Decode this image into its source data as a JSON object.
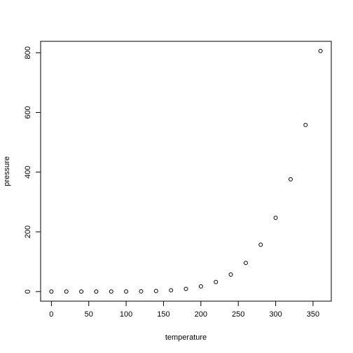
{
  "chart_data": {
    "type": "scatter",
    "x_label": "temperature",
    "y_label": "pressure",
    "x": [
      0,
      20,
      40,
      60,
      80,
      100,
      120,
      140,
      160,
      180,
      200,
      220,
      240,
      260,
      280,
      300,
      320,
      340,
      360
    ],
    "series": [
      {
        "values": [
          0.0002,
          0.0012,
          0.006,
          0.03,
          0.09,
          0.27,
          0.75,
          1.85,
          4.2,
          8.8,
          17.3,
          32.1,
          57,
          96,
          157,
          247,
          376,
          558,
          806
        ],
        "color": "#000000"
      }
    ],
    "xlim": [
      -14.4,
      374.4
    ],
    "ylim": [
      -32.24,
      838.24
    ],
    "xticks": [
      0,
      50,
      100,
      150,
      200,
      250,
      300,
      350
    ],
    "yticks": [
      0,
      200,
      400,
      600,
      800
    ]
  }
}
